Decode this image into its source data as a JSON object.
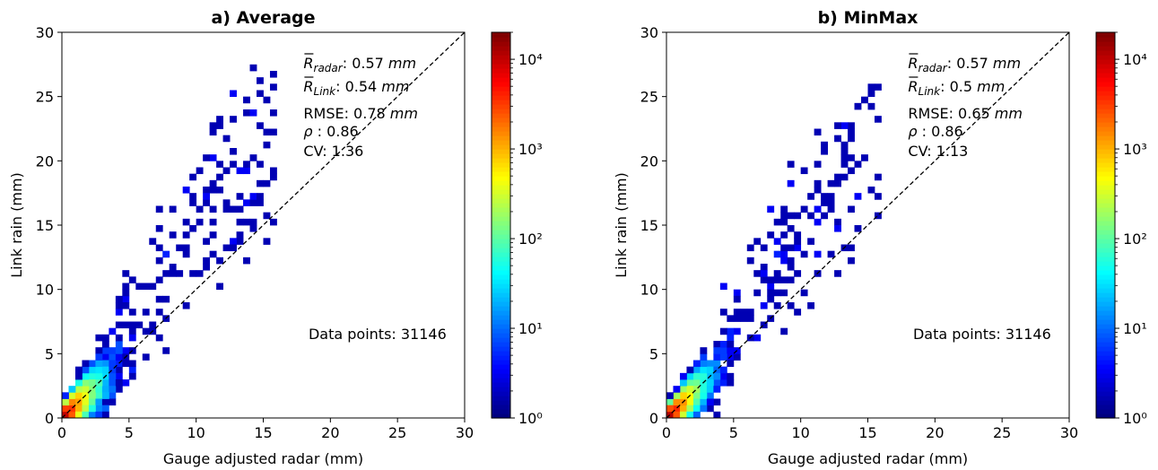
{
  "chart_data": [
    {
      "type": "heatmap",
      "title": "a) Average",
      "xlabel": "Gauge adjusted radar (mm)",
      "ylabel": "Link rain (mm)",
      "xlim": [
        0,
        30
      ],
      "ylim": [
        0,
        30
      ],
      "xticks": [
        "0",
        "5",
        "10",
        "15",
        "20",
        "25",
        "30"
      ],
      "yticks": [
        "0",
        "5",
        "10",
        "15",
        "20",
        "25",
        "30"
      ],
      "bin_size_mm": 0.5,
      "colorbar": {
        "scale": "log",
        "min": 1,
        "max": 20000,
        "ticks": [
          "10⁰",
          "10¹",
          "10²",
          "10³",
          "10⁴"
        ],
        "colormap": "jet"
      },
      "reference_line": "1:1 dashed",
      "stats": {
        "r_radar": "0.57",
        "r_link": "0.54",
        "rmse": "0.78",
        "rho": "0.86",
        "cv": "1.36",
        "r_radar_label": "R",
        "r_radar_sub": "radar",
        "r_link_label": "R",
        "r_link_sub": "Link",
        "unit": "mm",
        "rmse_label": "RMSE",
        "rho_label": "ρ",
        "cv_label": "CV"
      },
      "points_label": "Data points: 31146",
      "data_points": 31146
    },
    {
      "type": "heatmap",
      "title": "b) MinMax",
      "xlabel": "Gauge adjusted radar (mm)",
      "ylabel": "Link rain (mm)",
      "xlim": [
        0,
        30
      ],
      "ylim": [
        0,
        30
      ],
      "xticks": [
        "0",
        "5",
        "10",
        "15",
        "20",
        "25",
        "30"
      ],
      "yticks": [
        "0",
        "5",
        "10",
        "15",
        "20",
        "25",
        "30"
      ],
      "bin_size_mm": 0.5,
      "colorbar": {
        "scale": "log",
        "min": 1,
        "max": 20000,
        "ticks": [
          "10⁰",
          "10¹",
          "10²",
          "10³",
          "10⁴"
        ],
        "colormap": "jet"
      },
      "reference_line": "1:1 dashed",
      "stats": {
        "r_radar": "0.57",
        "r_link": "0.5",
        "rmse": "0.65",
        "rho": "0.86",
        "cv": "1.13",
        "r_radar_label": "R",
        "r_radar_sub": "radar",
        "r_link_label": "R",
        "r_link_sub": "Link",
        "unit": "mm",
        "rmse_label": "RMSE",
        "rho_label": "ρ",
        "cv_label": "CV"
      },
      "points_label": "Data points: 31146",
      "data_points": 31146
    }
  ]
}
